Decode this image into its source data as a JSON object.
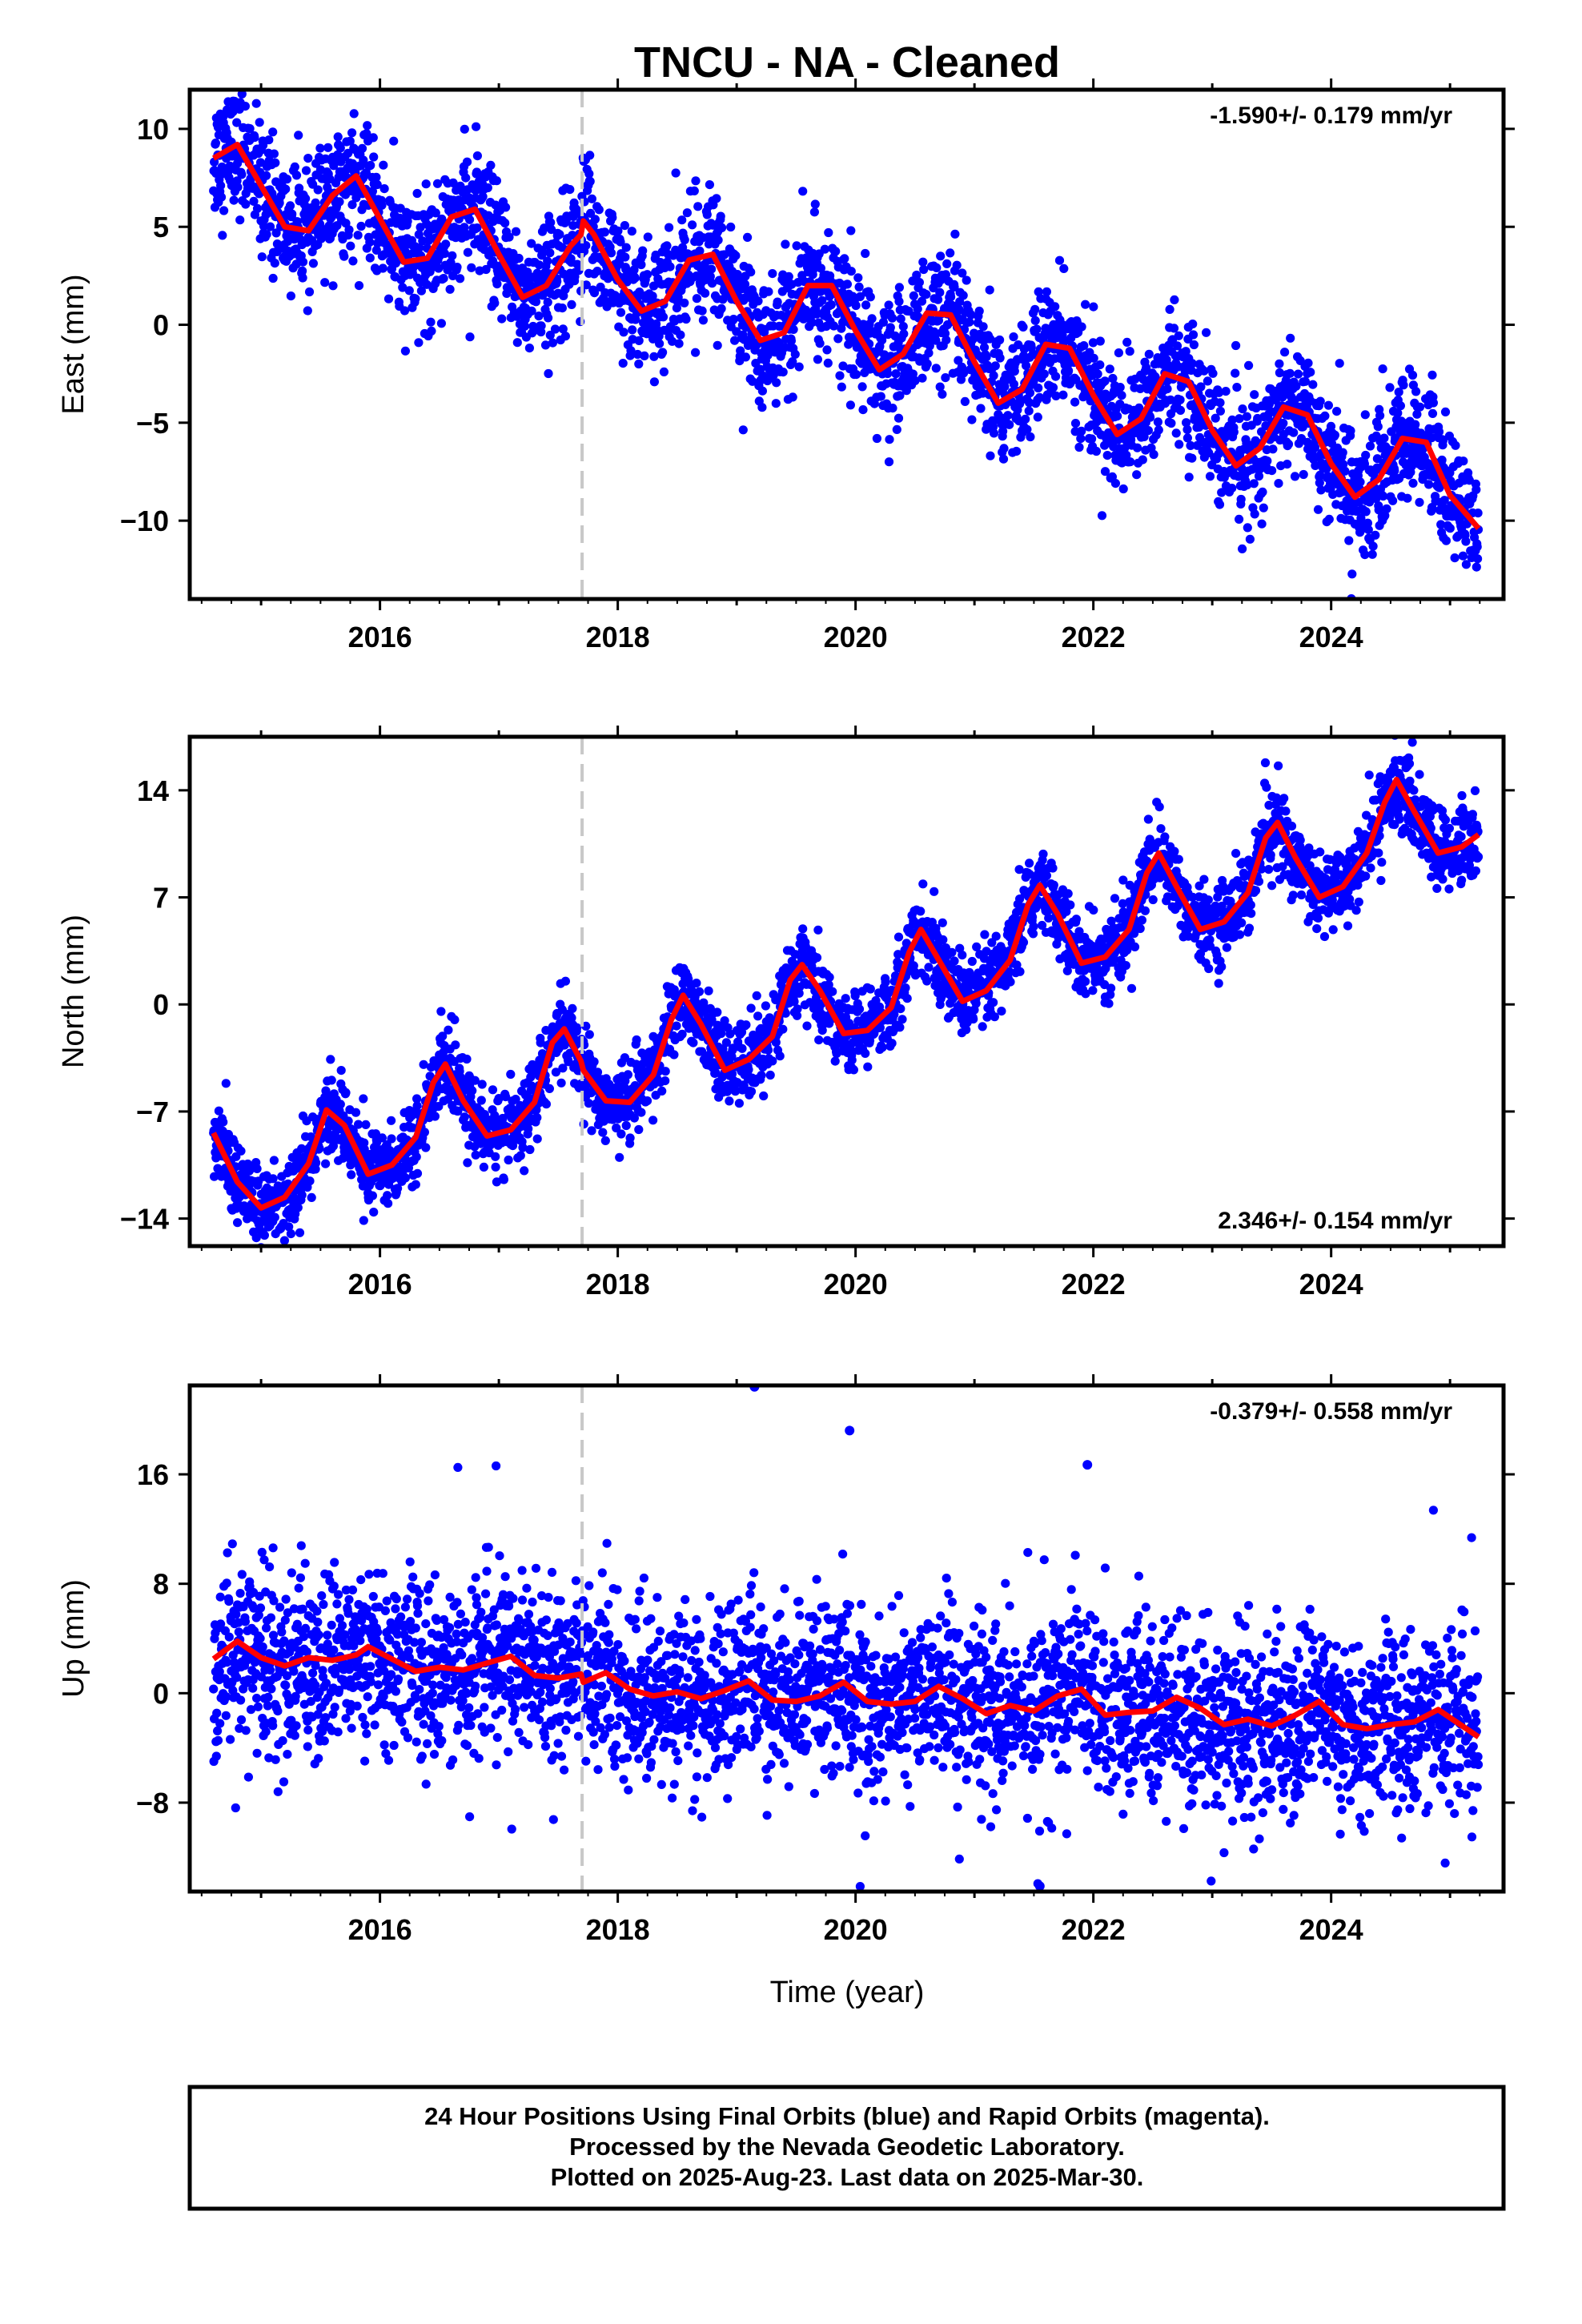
{
  "title": "TNCU  - NA - Cleaned",
  "x_axis_label": "Time (year)",
  "x_tick_labels": [
    "2016",
    "2018",
    "2020",
    "2022",
    "2024"
  ],
  "footer": {
    "line1": "24 Hour Positions Using Final Orbits (blue) and Rapid Orbits (magenta).",
    "line2": "Processed by the Nevada Geodetic Laboratory.",
    "line3": "Plotted on 2025-Aug-23. Last data on 2025-Mar-30."
  },
  "colors": {
    "data": "#0000ff",
    "model": "#ff0000",
    "step": "#c8c8c8",
    "frame": "#000000"
  },
  "chart_data": [
    {
      "type": "scatter",
      "component": "east",
      "ylabel": "East (mm)",
      "rate_label": "-1.590+/- 0.179 mm/yr",
      "xlim": [
        2014.4,
        2025.45
      ],
      "ylim": [
        -14,
        12
      ],
      "yticks": [
        10,
        5,
        0,
        -5,
        -10
      ],
      "ytick_labels": [
        "10",
        "5",
        "0",
        "−5",
        "−10"
      ],
      "xticks": [
        2016,
        2018,
        2020,
        2022,
        2024
      ],
      "equipment_change_year": 2017.7,
      "data_span": [
        2014.6,
        2025.24
      ],
      "rate_mm_per_yr": -1.59,
      "model_curve": {
        "x": [
          2014.6,
          2014.8,
          2015.0,
          2015.2,
          2015.4,
          2015.6,
          2015.8,
          2016.0,
          2016.2,
          2016.4,
          2016.6,
          2016.8,
          2017.0,
          2017.2,
          2017.4,
          2017.6,
          2017.69,
          2017.71,
          2017.8,
          2018.0,
          2018.2,
          2018.4,
          2018.6,
          2018.8,
          2019.0,
          2019.2,
          2019.4,
          2019.6,
          2019.8,
          2020.0,
          2020.2,
          2020.4,
          2020.6,
          2020.8,
          2021.0,
          2021.2,
          2021.4,
          2021.6,
          2021.8,
          2022.0,
          2022.2,
          2022.4,
          2022.6,
          2022.8,
          2023.0,
          2023.2,
          2023.4,
          2023.6,
          2023.8,
          2024.0,
          2024.2,
          2024.4,
          2024.6,
          2024.8,
          2025.0,
          2025.24
        ],
        "y": [
          8.5,
          9.2,
          7.1,
          5.0,
          4.8,
          6.6,
          7.6,
          5.4,
          3.2,
          3.4,
          5.5,
          5.9,
          3.6,
          1.4,
          2.0,
          4.0,
          4.6,
          5.3,
          4.6,
          2.3,
          0.7,
          1.2,
          3.3,
          3.6,
          1.2,
          -0.8,
          -0.4,
          2.0,
          2.0,
          -0.3,
          -2.3,
          -1.5,
          0.6,
          0.5,
          -1.9,
          -4.0,
          -3.3,
          -1.0,
          -1.2,
          -3.6,
          -5.6,
          -4.8,
          -2.5,
          -2.9,
          -5.4,
          -7.2,
          -6.3,
          -4.2,
          -4.6,
          -7.1,
          -8.8,
          -7.9,
          -5.8,
          -6.0,
          -8.7,
          -10.4
        ]
      },
      "noise_mm": 1.6
    },
    {
      "type": "scatter",
      "component": "north",
      "ylabel": "North (mm)",
      "rate_label": "2.346+/- 0.154 mm/yr",
      "xlim": [
        2014.4,
        2025.45
      ],
      "ylim": [
        -15.8,
        17.5
      ],
      "yticks": [
        14,
        7,
        0,
        -7,
        -14
      ],
      "ytick_labels": [
        "14",
        "7",
        "0",
        "−7",
        "−14"
      ],
      "xticks": [
        2016,
        2018,
        2020,
        2022,
        2024
      ],
      "equipment_change_year": 2017.7,
      "data_span": [
        2014.6,
        2025.24
      ],
      "rate_mm_per_yr": 2.346,
      "model_curve": {
        "x": [
          2014.6,
          2014.8,
          2015.0,
          2015.2,
          2015.4,
          2015.55,
          2015.7,
          2015.9,
          2016.1,
          2016.3,
          2016.45,
          2016.55,
          2016.7,
          2016.9,
          2017.1,
          2017.3,
          2017.45,
          2017.55,
          2017.69,
          2017.71,
          2017.9,
          2018.1,
          2018.3,
          2018.45,
          2018.55,
          2018.7,
          2018.9,
          2019.1,
          2019.3,
          2019.45,
          2019.55,
          2019.7,
          2019.9,
          2020.1,
          2020.3,
          2020.45,
          2020.55,
          2020.7,
          2020.9,
          2021.1,
          2021.3,
          2021.45,
          2021.55,
          2021.7,
          2021.9,
          2022.1,
          2022.3,
          2022.45,
          2022.55,
          2022.7,
          2022.9,
          2023.1,
          2023.3,
          2023.45,
          2023.55,
          2023.7,
          2023.9,
          2024.1,
          2024.3,
          2024.45,
          2024.55,
          2024.7,
          2024.9,
          2025.1,
          2025.24
        ],
        "y": [
          -8.4,
          -11.6,
          -13.3,
          -12.6,
          -10.4,
          -6.9,
          -7.9,
          -11.1,
          -10.5,
          -8.7,
          -5.1,
          -3.9,
          -6.3,
          -8.6,
          -8.2,
          -6.4,
          -2.5,
          -1.6,
          -3.7,
          -4.3,
          -6.3,
          -6.4,
          -4.6,
          -1.0,
          0.6,
          -1.3,
          -4.3,
          -3.6,
          -2.1,
          1.6,
          2.6,
          0.9,
          -1.9,
          -1.7,
          -0.2,
          3.4,
          4.9,
          2.9,
          0.2,
          0.9,
          2.9,
          6.5,
          7.8,
          5.9,
          2.7,
          3.1,
          4.9,
          8.6,
          9.9,
          7.7,
          4.9,
          5.4,
          7.3,
          10.9,
          11.9,
          9.6,
          7.0,
          7.7,
          9.9,
          13.2,
          14.7,
          12.6,
          9.9,
          10.3,
          11.1
        ]
      },
      "noise_mm": 1.3
    },
    {
      "type": "scatter",
      "component": "up",
      "ylabel": "Up (mm)",
      "rate_label": "-0.379+/- 0.558 mm/yr",
      "xlim": [
        2014.4,
        2025.45
      ],
      "ylim": [
        -14.5,
        22.5
      ],
      "yticks": [
        16,
        8,
        0,
        -8
      ],
      "ytick_labels": [
        "16",
        "8",
        "0",
        "−8"
      ],
      "xticks": [
        2016,
        2018,
        2020,
        2022,
        2024
      ],
      "equipment_change_year": 2017.7,
      "data_span": [
        2014.6,
        2025.24
      ],
      "rate_mm_per_yr": -0.379,
      "model_curve": {
        "x": [
          2014.6,
          2014.8,
          2015.0,
          2015.2,
          2015.4,
          2015.6,
          2015.8,
          2015.9,
          2016.1,
          2016.3,
          2016.5,
          2016.7,
          2016.9,
          2017.1,
          2017.3,
          2017.5,
          2017.69,
          2017.71,
          2017.9,
          2018.1,
          2018.3,
          2018.5,
          2018.7,
          2018.9,
          2019.1,
          2019.3,
          2019.5,
          2019.7,
          2019.9,
          2020.1,
          2020.3,
          2020.5,
          2020.7,
          2020.9,
          2021.1,
          2021.3,
          2021.5,
          2021.7,
          2021.9,
          2022.1,
          2022.3,
          2022.5,
          2022.7,
          2022.9,
          2023.1,
          2023.3,
          2023.5,
          2023.7,
          2023.9,
          2024.1,
          2024.3,
          2024.5,
          2024.7,
          2024.9,
          2025.24
        ],
        "y": [
          2.5,
          3.8,
          2.6,
          2.0,
          2.6,
          2.4,
          2.8,
          3.4,
          2.5,
          1.6,
          1.9,
          1.7,
          2.2,
          2.7,
          1.3,
          1.1,
          1.4,
          0.8,
          1.5,
          0.3,
          -0.2,
          0.1,
          -0.4,
          0.2,
          0.9,
          -0.5,
          -0.6,
          -0.2,
          0.8,
          -0.6,
          -0.8,
          -0.6,
          0.5,
          -0.4,
          -1.5,
          -0.9,
          -1.3,
          -0.2,
          0.3,
          -1.6,
          -1.4,
          -1.3,
          -0.3,
          -1.1,
          -2.3,
          -1.9,
          -2.4,
          -1.6,
          -0.6,
          -2.3,
          -2.6,
          -2.3,
          -2.1,
          -1.2,
          -3.2
        ]
      },
      "noise_mm": 3.0,
      "outliers": [
        [
          2019.15,
          22.4
        ],
        [
          2019.95,
          19.2
        ],
        [
          2021.95,
          16.7
        ],
        [
          2021.55,
          -14.1
        ]
      ]
    }
  ]
}
